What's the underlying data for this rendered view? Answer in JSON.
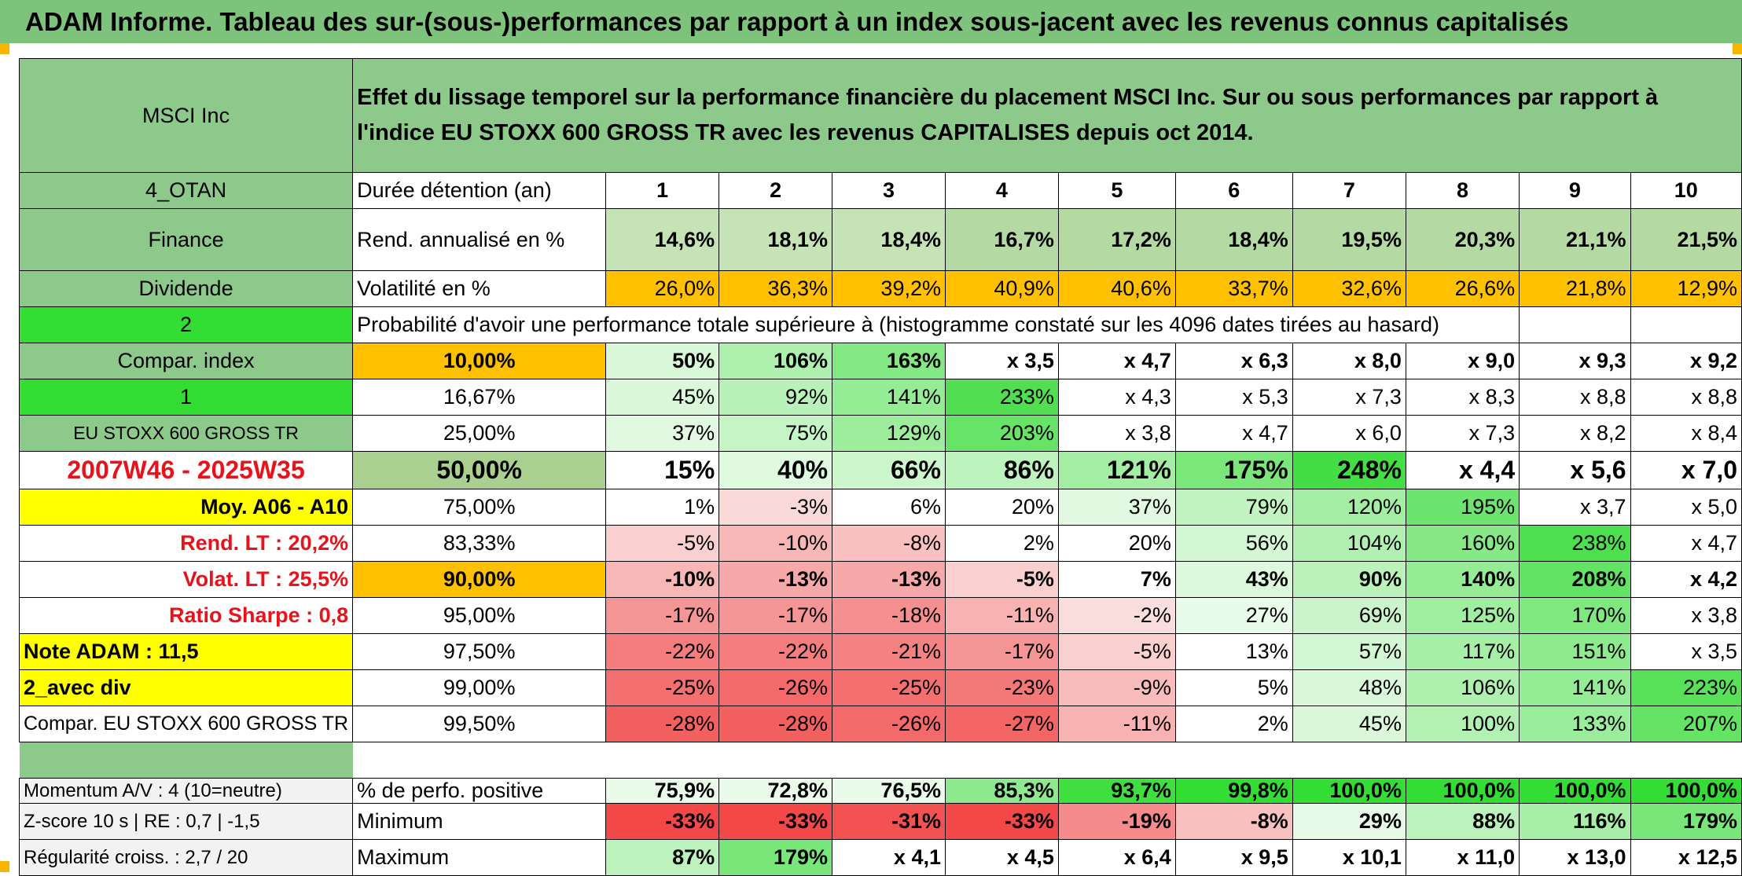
{
  "title": "ADAM Informe. Tableau des sur-(sous-)performances par rapport à un index sous-jacent avec les revenus connus capitalisés",
  "header": {
    "name": "MSCI Inc",
    "description": "Effet du lissage temporel sur la performance financière du placement MSCI Inc. Sur ou sous performances par rapport à l'indice EU STOXX 600 GROSS TR avec les revenus CAPITALISES depuis oct 2014."
  },
  "info_labels": [
    "4_OTAN",
    "Finance",
    "Dividende",
    "2",
    "Compar. index",
    "1",
    "EU STOXX 600 GROSS TR",
    "2007W46 - 2025W35",
    "Moy. A06 - A10",
    "Rend. LT :   20,2%",
    "Volat. LT :   25,5%",
    "Ratio Sharpe :    0,8",
    "Note ADAM : 11,5",
    "2_avec div",
    "Compar. EU STOXX 600 GROSS TR"
  ],
  "duration": {
    "label": "Durée détention (an)",
    "years": [
      "1",
      "2",
      "3",
      "4",
      "5",
      "6",
      "7",
      "8",
      "9",
      "10"
    ]
  },
  "returns": {
    "label": "Rend. annualisé en %",
    "values": [
      "14,6%",
      "18,1%",
      "18,4%",
      "16,7%",
      "17,2%",
      "18,4%",
      "19,5%",
      "20,3%",
      "21,1%",
      "21,5%"
    ]
  },
  "volatility": {
    "label": "Volatilité en %",
    "values": [
      "26,0%",
      "36,3%",
      "39,2%",
      "40,9%",
      "40,6%",
      "33,7%",
      "32,6%",
      "26,6%",
      "21,8%",
      "12,9%"
    ]
  },
  "probability_label": "Probabilité d'avoir une performance totale supérieure à (histogramme constaté sur les 4096 dates tirées au hasard)",
  "perf_rows": [
    {
      "pct": "10,00%",
      "values": [
        "50%",
        "106%",
        "163%",
        "x 3,5",
        "x 4,7",
        "x 6,3",
        "x 8,0",
        "x 9,0",
        "x 9,3",
        "x 9,2"
      ]
    },
    {
      "pct": "16,67%",
      "values": [
        "45%",
        "92%",
        "141%",
        "233%",
        "x 4,3",
        "x 5,3",
        "x 7,3",
        "x 8,3",
        "x 8,8",
        "x 8,8"
      ]
    },
    {
      "pct": "25,00%",
      "values": [
        "37%",
        "75%",
        "129%",
        "203%",
        "x 3,8",
        "x 4,7",
        "x 6,0",
        "x 7,3",
        "x 8,2",
        "x 8,4"
      ]
    },
    {
      "pct": "50,00%",
      "values": [
        "15%",
        "40%",
        "66%",
        "86%",
        "121%",
        "175%",
        "248%",
        "x 4,4",
        "x 5,6",
        "x 7,0"
      ]
    },
    {
      "pct": "75,00%",
      "values": [
        "1%",
        "-3%",
        "6%",
        "20%",
        "37%",
        "79%",
        "120%",
        "195%",
        "x 3,7",
        "x 5,0"
      ]
    },
    {
      "pct": "83,33%",
      "values": [
        "-5%",
        "-10%",
        "-8%",
        "2%",
        "20%",
        "56%",
        "104%",
        "160%",
        "238%",
        "x 4,7"
      ]
    },
    {
      "pct": "90,00%",
      "values": [
        "-10%",
        "-13%",
        "-13%",
        "-5%",
        "7%",
        "43%",
        "90%",
        "140%",
        "208%",
        "x 4,2"
      ]
    },
    {
      "pct": "95,00%",
      "values": [
        "-17%",
        "-17%",
        "-18%",
        "-11%",
        "-2%",
        "27%",
        "69%",
        "125%",
        "170%",
        "x 3,8"
      ]
    },
    {
      "pct": "97,50%",
      "values": [
        "-22%",
        "-22%",
        "-21%",
        "-17%",
        "-5%",
        "13%",
        "57%",
        "117%",
        "151%",
        "x 3,5"
      ]
    },
    {
      "pct": "99,00%",
      "values": [
        "-25%",
        "-26%",
        "-25%",
        "-23%",
        "-9%",
        "5%",
        "48%",
        "106%",
        "141%",
        "223%"
      ]
    },
    {
      "pct": "99,50%",
      "values": [
        "-28%",
        "-28%",
        "-26%",
        "-27%",
        "-11%",
        "2%",
        "45%",
        "100%",
        "133%",
        "207%"
      ]
    }
  ],
  "bottom_rows": [
    {
      "info": "Momentum A/V : 4 (10=neutre)",
      "label": "% de perfo. positive",
      "values": [
        "75,9%",
        "72,8%",
        "76,5%",
        "85,3%",
        "93,7%",
        "99,8%",
        "100,0%",
        "100,0%",
        "100,0%",
        "100,0%"
      ]
    },
    {
      "info": "Z-score 10 s | RE : 0,7 | -1,5",
      "label": "Minimum",
      "values": [
        "-33%",
        "-33%",
        "-31%",
        "-33%",
        "-19%",
        "-8%",
        "29%",
        "88%",
        "116%",
        "179%"
      ]
    },
    {
      "info": "Régularité croiss. : 2,7 / 20",
      "label": "Maximum",
      "values": [
        "87%",
        "179%",
        "x 4,1",
        "x 4,5",
        "x 6,4",
        "x 9,5",
        "x 10,1",
        "x 11,0",
        "x 13,0",
        "x 12,5"
      ]
    }
  ],
  "colors": {
    "title_bg": "#7ec37c",
    "label_green": "#8cc98a",
    "bright_green": "#33dd33",
    "yellow": "#ffff00",
    "orange": "#ffc000",
    "accent_red": "#e8121a"
  }
}
